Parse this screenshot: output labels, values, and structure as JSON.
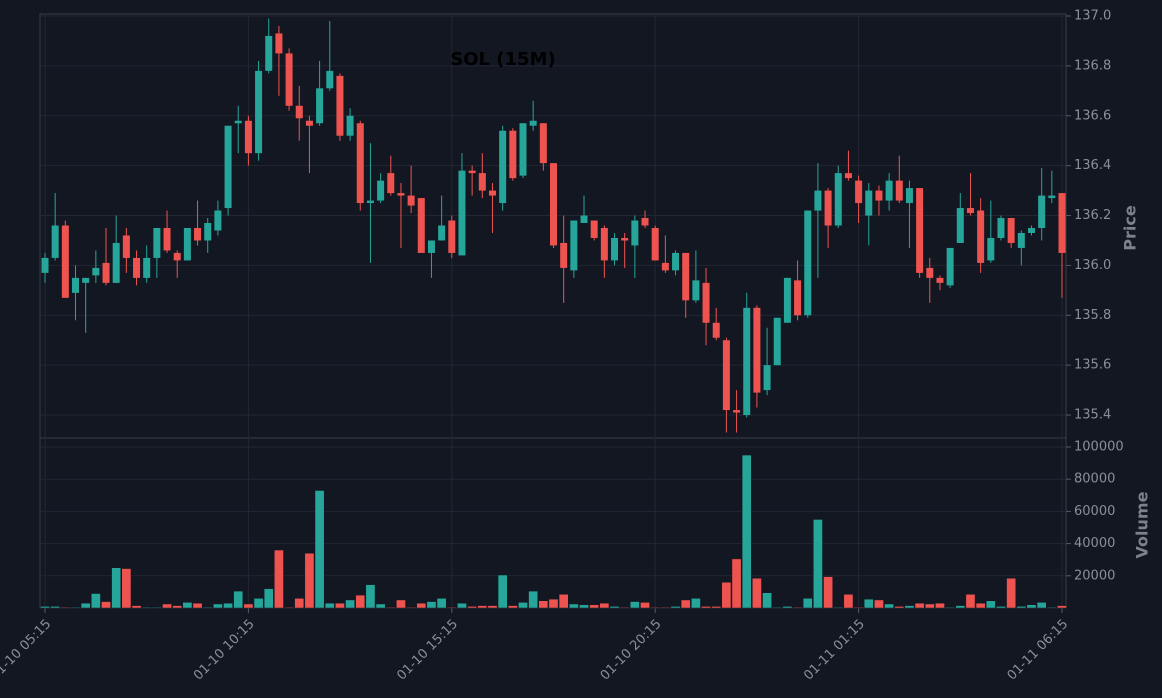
{
  "chart_data": [
    {
      "type": "candlestick",
      "title": "SOL (15M)",
      "ylabel": "Price",
      "up_color": "#26a69a",
      "down_color": "#ef5350",
      "grid": true,
      "x": [
        "01-10 05:15",
        "01-10 05:30",
        "01-10 05:45",
        "01-10 06:00",
        "01-10 06:15",
        "01-10 06:30",
        "01-10 06:45",
        "01-10 07:00",
        "01-10 07:15",
        "01-10 07:30",
        "01-10 07:45",
        "01-10 08:00",
        "01-10 08:15",
        "01-10 08:30",
        "01-10 08:45",
        "01-10 09:00",
        "01-10 09:15",
        "01-10 09:30",
        "01-10 09:45",
        "01-10 10:00",
        "01-10 10:15",
        "01-10 10:30",
        "01-10 10:45",
        "01-10 11:00",
        "01-10 11:15",
        "01-10 11:30",
        "01-10 11:45",
        "01-10 12:00",
        "01-10 12:15",
        "01-10 12:30",
        "01-10 12:45",
        "01-10 13:00",
        "01-10 13:15",
        "01-10 13:30",
        "01-10 13:45",
        "01-10 14:00",
        "01-10 14:15",
        "01-10 14:30",
        "01-10 14:45",
        "01-10 15:00",
        "01-10 15:15",
        "01-10 15:30",
        "01-10 15:45",
        "01-10 16:00",
        "01-10 16:15",
        "01-10 16:30",
        "01-10 16:45",
        "01-10 17:00",
        "01-10 17:15",
        "01-10 17:30",
        "01-10 17:45",
        "01-10 18:00",
        "01-10 18:15",
        "01-10 18:30",
        "01-10 18:45",
        "01-10 19:00",
        "01-10 19:15",
        "01-10 19:30",
        "01-10 19:45",
        "01-10 20:00",
        "01-10 20:15",
        "01-10 20:30",
        "01-10 20:45",
        "01-10 21:00",
        "01-10 21:15",
        "01-10 21:30",
        "01-10 21:45",
        "01-10 22:00",
        "01-10 22:15",
        "01-10 22:30",
        "01-10 22:45",
        "01-10 23:00",
        "01-10 23:15",
        "01-10 23:30",
        "01-10 23:45",
        "01-11 00:00",
        "01-11 00:15",
        "01-11 00:30",
        "01-11 00:45",
        "01-11 01:00",
        "01-11 01:15",
        "01-11 01:30",
        "01-11 01:45",
        "01-11 02:00",
        "01-11 02:15",
        "01-11 02:30",
        "01-11 02:45",
        "01-11 03:00",
        "01-11 03:15",
        "01-11 03:30",
        "01-11 03:45",
        "01-11 04:00",
        "01-11 04:15",
        "01-11 04:30",
        "01-11 04:45",
        "01-11 05:00",
        "01-11 05:15",
        "01-11 05:30",
        "01-11 05:45",
        "01-11 06:00",
        "01-11 06:15"
      ],
      "xticks": [
        "01-10 05:15",
        "01-10 10:15",
        "01-10 15:15",
        "01-10 20:15",
        "01-11 01:15",
        "01-11 06:15"
      ],
      "open": [
        135.97,
        136.03,
        136.16,
        135.89,
        135.93,
        135.96,
        136.01,
        135.93,
        136.12,
        136.03,
        135.95,
        136.03,
        136.15,
        136.05,
        136.02,
        136.15,
        136.1,
        136.14,
        136.23,
        136.57,
        136.58,
        136.45,
        136.78,
        136.93,
        136.85,
        136.64,
        136.58,
        136.57,
        136.71,
        136.76,
        136.52,
        136.57,
        136.25,
        136.26,
        136.37,
        136.29,
        136.28,
        136.27,
        136.05,
        136.1,
        136.18,
        136.04,
        136.38,
        136.37,
        136.3,
        136.25,
        136.54,
        136.36,
        136.56,
        136.57,
        136.41,
        136.09,
        135.98,
        136.17,
        136.18,
        136.15,
        136.02,
        136.11,
        136.08,
        136.19,
        136.15,
        136.01,
        135.98,
        136.05,
        135.86,
        135.93,
        135.77,
        135.7,
        135.42,
        135.4,
        135.83,
        135.5,
        135.6,
        135.77,
        135.94,
        135.8,
        136.22,
        136.3,
        136.16,
        136.37,
        136.34,
        136.2,
        136.3,
        136.26,
        136.34,
        136.25,
        136.31,
        135.99,
        135.95,
        135.92,
        136.09,
        136.23,
        136.22,
        136.02,
        136.11,
        136.19,
        136.07,
        136.13,
        136.15,
        136.27,
        136.29
      ],
      "high": [
        136.05,
        136.29,
        136.18,
        136.0,
        135.95,
        136.06,
        136.15,
        136.2,
        136.15,
        136.06,
        136.08,
        136.15,
        136.22,
        136.06,
        136.15,
        136.26,
        136.19,
        136.26,
        136.56,
        136.64,
        136.6,
        136.82,
        136.99,
        136.96,
        136.87,
        136.72,
        136.6,
        136.82,
        136.98,
        136.77,
        136.63,
        136.58,
        136.49,
        136.37,
        136.44,
        136.33,
        136.4,
        136.27,
        136.1,
        136.28,
        136.2,
        136.45,
        136.4,
        136.45,
        136.33,
        136.56,
        136.55,
        136.57,
        136.66,
        136.57,
        136.41,
        136.2,
        136.18,
        136.28,
        136.18,
        136.16,
        136.13,
        136.13,
        136.2,
        136.22,
        136.16,
        136.12,
        136.06,
        136.05,
        136.06,
        135.99,
        135.83,
        135.71,
        135.5,
        135.89,
        135.84,
        135.75,
        135.79,
        135.95,
        136.02,
        136.22,
        136.41,
        136.31,
        136.4,
        136.46,
        136.36,
        136.33,
        136.32,
        136.37,
        136.44,
        136.34,
        136.31,
        136.03,
        135.96,
        136.07,
        136.29,
        136.37,
        136.27,
        136.26,
        136.2,
        136.19,
        136.14,
        136.16,
        136.39,
        136.38,
        136.29
      ],
      "low": [
        135.93,
        136.02,
        135.87,
        135.78,
        135.73,
        135.93,
        135.92,
        135.93,
        135.97,
        135.92,
        135.93,
        135.95,
        136.05,
        135.95,
        136.02,
        136.08,
        136.05,
        136.12,
        136.2,
        136.45,
        136.4,
        136.42,
        136.77,
        136.68,
        136.62,
        136.5,
        136.37,
        136.56,
        136.7,
        136.5,
        136.5,
        136.22,
        136.01,
        136.25,
        136.28,
        136.07,
        136.21,
        136.05,
        135.95,
        136.1,
        136.03,
        136.04,
        136.28,
        136.27,
        136.13,
        136.22,
        136.34,
        136.35,
        136.54,
        136.38,
        136.07,
        135.85,
        135.95,
        136.17,
        136.1,
        135.95,
        136.0,
        135.99,
        135.95,
        136.15,
        136.02,
        135.97,
        135.96,
        135.79,
        135.85,
        135.68,
        135.7,
        135.33,
        135.33,
        135.39,
        135.43,
        135.48,
        135.6,
        135.77,
        135.78,
        135.79,
        135.95,
        136.07,
        136.15,
        136.34,
        136.17,
        136.08,
        136.2,
        136.22,
        136.25,
        136.07,
        135.95,
        135.85,
        135.9,
        135.91,
        136.09,
        136.2,
        135.97,
        136.01,
        136.1,
        136.07,
        136.0,
        136.12,
        136.1,
        136.25,
        135.87
      ],
      "close": [
        136.03,
        136.16,
        135.87,
        135.95,
        135.95,
        135.99,
        135.93,
        136.09,
        136.03,
        135.95,
        136.03,
        136.15,
        136.06,
        136.02,
        136.15,
        136.1,
        136.17,
        136.22,
        136.56,
        136.58,
        136.45,
        136.78,
        136.92,
        136.85,
        136.64,
        136.59,
        136.56,
        136.71,
        136.78,
        136.52,
        136.6,
        136.25,
        136.26,
        136.34,
        136.29,
        136.28,
        136.24,
        136.05,
        136.1,
        136.16,
        136.05,
        136.38,
        136.37,
        136.3,
        136.28,
        136.54,
        136.35,
        136.57,
        136.58,
        136.41,
        136.08,
        135.99,
        136.18,
        136.2,
        136.11,
        136.02,
        136.11,
        136.1,
        136.18,
        136.16,
        136.02,
        135.98,
        136.05,
        135.86,
        135.94,
        135.77,
        135.71,
        135.42,
        135.41,
        135.83,
        135.49,
        135.6,
        135.79,
        135.95,
        135.8,
        136.22,
        136.3,
        136.16,
        136.37,
        136.35,
        136.25,
        136.3,
        136.26,
        136.34,
        136.26,
        136.31,
        135.97,
        135.95,
        135.93,
        136.07,
        136.23,
        136.21,
        136.01,
        136.11,
        136.19,
        136.09,
        136.13,
        136.15,
        136.28,
        136.28,
        136.05
      ],
      "ylim": [
        135.308,
        137.008
      ],
      "yticks": [
        135.4,
        135.6,
        135.8,
        {
          "value": 136.0,
          "label": "136.0"
        },
        136.2,
        136.4,
        136.6,
        136.8,
        {
          "value": 137.0,
          "label": "137.0"
        }
      ]
    },
    {
      "type": "bar",
      "ylabel": "Volume",
      "grid": true,
      "values": [
        1000,
        1000,
        500,
        500,
        3000,
        9000,
        4000,
        25000,
        24500,
        1500,
        500,
        500,
        2500,
        1500,
        3500,
        3000,
        500,
        2500,
        3000,
        10500,
        2500,
        6000,
        12000,
        36000,
        500,
        6000,
        34000,
        73000,
        3000,
        3000,
        5000,
        8000,
        14500,
        2500,
        500,
        5000,
        500,
        3000,
        4000,
        6000,
        500,
        3000,
        1000,
        1500,
        1500,
        20500,
        1500,
        3500,
        10500,
        4500,
        5500,
        8500,
        2500,
        2000,
        2000,
        3000,
        1000,
        500,
        4000,
        3500,
        500,
        500,
        1000,
        5000,
        6000,
        1000,
        1000,
        16000,
        30500,
        95000,
        18500,
        9500,
        500,
        1000,
        500,
        6000,
        55000,
        19500,
        500,
        8500,
        500,
        5500,
        5000,
        2500,
        1000,
        1500,
        3000,
        2500,
        3000,
        500,
        1500,
        8500,
        3000,
        4500,
        1000,
        18500,
        1000,
        2000,
        3500,
        500,
        1500
      ],
      "ylim": [
        0,
        105590
      ],
      "yticks": [
        20000,
        40000,
        60000,
        80000,
        100000
      ]
    }
  ]
}
